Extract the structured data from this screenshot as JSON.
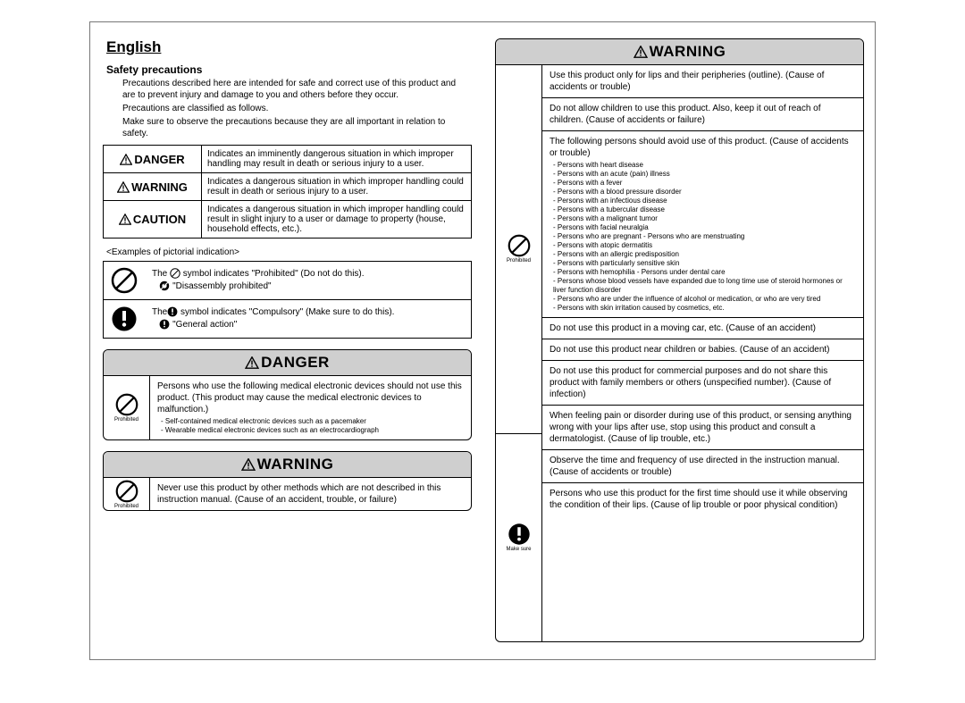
{
  "language": "English",
  "section_title": "Safety precautions",
  "intro": {
    "p1": "Precautions described here are intended for safe and correct use of this product and are to prevent injury and damage to you and others before they occur.",
    "p2": "Precautions are classified as follows.",
    "p3": "Make sure to observe the precautions because they are all important in relation to safety."
  },
  "classification": {
    "danger_label": "DANGER",
    "danger_desc": "Indicates an imminently dangerous situation in which improper handling may result in death or serious injury to a user.",
    "warning_label": "WARNING",
    "warning_desc": "Indicates a dangerous situation in which improper handling could result in death or serious injury to a user.",
    "caution_label": "CAUTION",
    "caution_desc": "Indicates a dangerous situation in which improper handling could result in slight injury to a user or damage to property (house, household effects, etc.)."
  },
  "examples_label": "<Examples of pictorial indication>",
  "pictorial": {
    "prohibited_line1_a": "The ",
    "prohibited_line1_b": " symbol indicates \"Prohibited\" (Do not do this).",
    "prohibited_line2": "\"Disassembly prohibited\"",
    "compulsory_line1_a": "The",
    "compulsory_line1_b": " symbol indicates \"Compulsory\" (Make sure to do this).",
    "compulsory_line2": "\"General action\""
  },
  "danger_block": {
    "title": "DANGER",
    "icon_caption": "Prohibited",
    "text_main": "Persons who use the following medical electronic devices should not use this product. (This product may cause the medical electronic devices to malfunction.)",
    "subitems": [
      "Self-contained medical electronic devices such as a pacemaker",
      "Wearable medical electronic devices such as an electrocardiograph"
    ]
  },
  "warning_block_left": {
    "title": "WARNING",
    "icon_caption": "Prohibited",
    "text": "Never use this product by other methods which are not described in this instruction manual. (Cause of an accident, trouble, or failure)"
  },
  "warning_block_right": {
    "title": "WARNING",
    "prohibited_caption": "Prohibited",
    "makesure_caption": "Make sure",
    "rows": [
      "Use this product only for lips and their peripheries (outline). (Cause of accidents or trouble)",
      "Do not allow children to use this product. Also, keep it out of reach of children. (Cause of accidents or failure)"
    ],
    "row3_intro": "The following persons should avoid use of this product. (Cause of accidents or trouble)",
    "row3_items": [
      "Persons with heart disease",
      "Persons with an acute (pain) illness",
      "Persons with a fever",
      "Persons with a blood pressure disorder",
      "Persons with an infectious disease",
      "Persons with a tubercular disease",
      "Persons with a malignant tumor",
      "Persons with facial neuralgia",
      "Persons who are pregnant  - Persons who are menstruating",
      "Persons with atopic dermatitis",
      "Persons with an allergic predisposition",
      "Persons with particularly sensitive skin",
      "Persons with hemophilia    - Persons under dental care",
      "Persons whose blood vessels have expanded due to long time use of steroid hormones or liver function disorder",
      "Persons who are under the influence of alcohol or medication, or who are very tired",
      "Persons with skin irritation caused by cosmetics, etc."
    ],
    "row4": "Do not use this product in a moving car, etc. (Cause of an accident)",
    "row5": "Do not use this product near children or babies. (Cause of an accident)",
    "row6": "Do not use this product for commercial purposes and do not share this product with family members or others (unspecified number). (Cause of infection)",
    "row7": "When feeling pain or disorder during use of this product, or sensing anything wrong with your lips after use, stop using this product and consult a dermatologist. (Cause of lip trouble, etc.)",
    "row8": "Observe the time and frequency of use directed in the instruction manual. (Cause of accidents or trouble)",
    "row9": "Persons who use this product for the first time should use it while observing the condition of their lips. (Cause of lip trouble or poor physical condition)"
  }
}
